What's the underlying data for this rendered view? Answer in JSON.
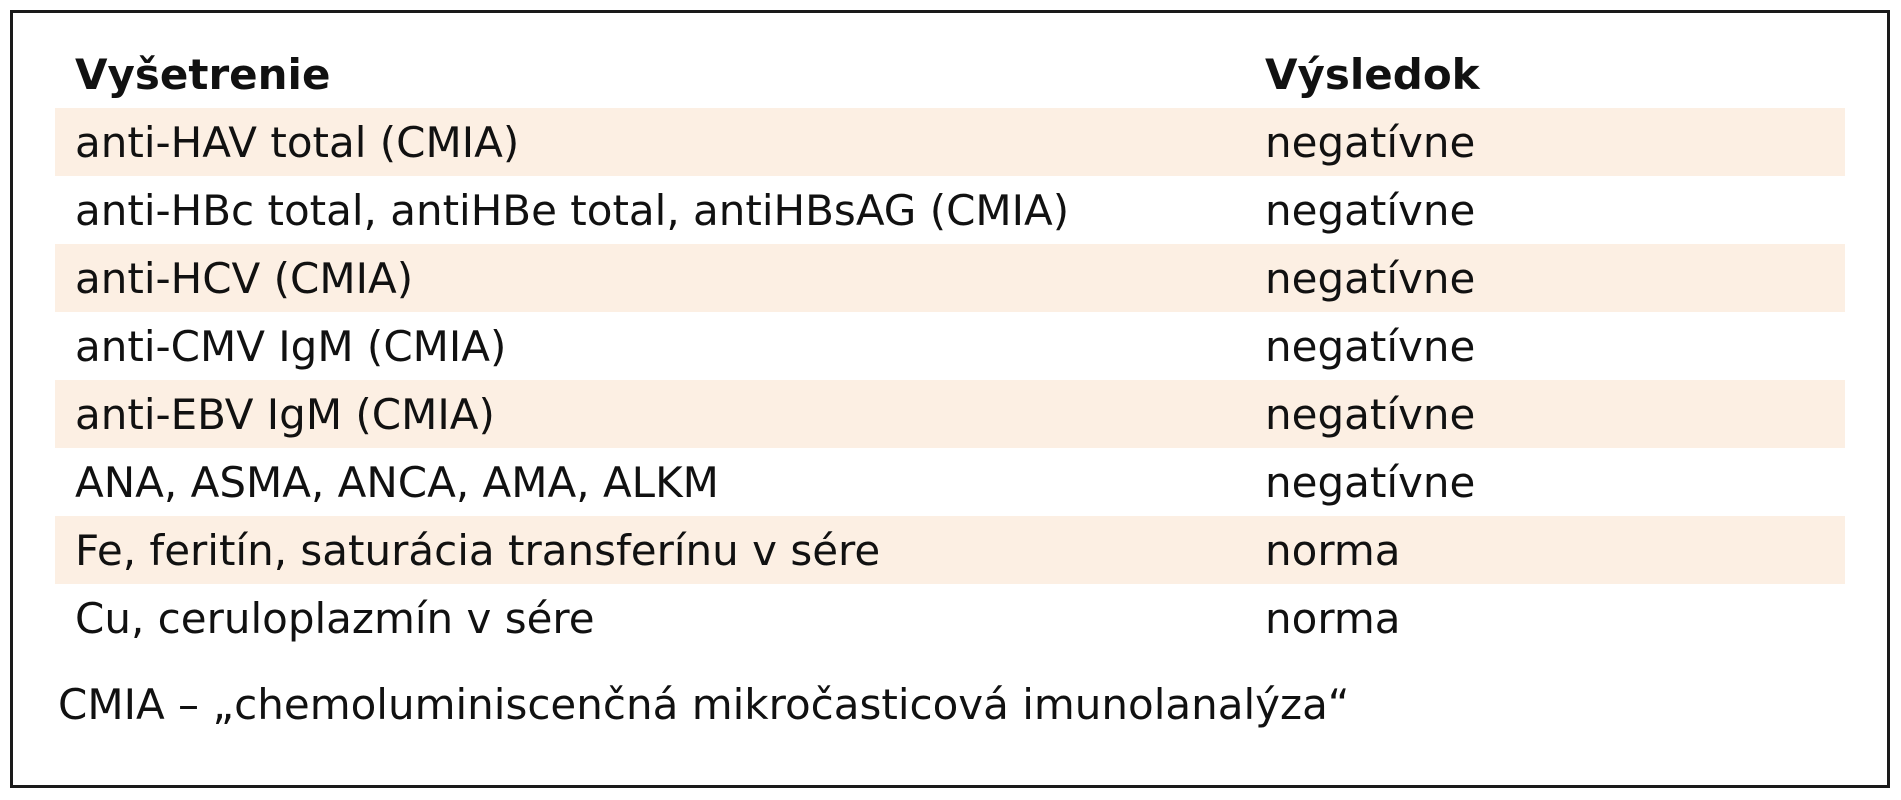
{
  "table": {
    "headers": [
      "Vyšetrenie",
      "Výsledok"
    ],
    "rows": [
      {
        "test": "anti-HAV total (CMIA)",
        "result": "negatívne",
        "shaded": true
      },
      {
        "test": "anti-HBc total, antiHBe total, antiHBsAG (CMIA)",
        "result": "negatívne",
        "shaded": false
      },
      {
        "test": "anti-HCV (CMIA)",
        "result": "negatívne",
        "shaded": true
      },
      {
        "test": "anti-CMV IgM (CMIA)",
        "result": "negatívne",
        "shaded": false
      },
      {
        "test": "anti-EBV IgM (CMIA)",
        "result": "negatívne",
        "shaded": true
      },
      {
        "test": "ANA, ASMA, ANCA, AMA, ALKM",
        "result": "negatívne",
        "shaded": false
      },
      {
        "test": "Fe, feritín, saturácia transferínu v sére",
        "result": "norma",
        "shaded": true
      },
      {
        "test": "Cu, ceruloplazmín v sére",
        "result": "norma",
        "shaded": false
      }
    ]
  },
  "footnote": "CMIA – „chemoluminiscenčná mikročasticová imunolanalýza“",
  "colors": {
    "row_shade": "#fcefe3",
    "border": "#1a1a1a",
    "text": "#111111"
  }
}
